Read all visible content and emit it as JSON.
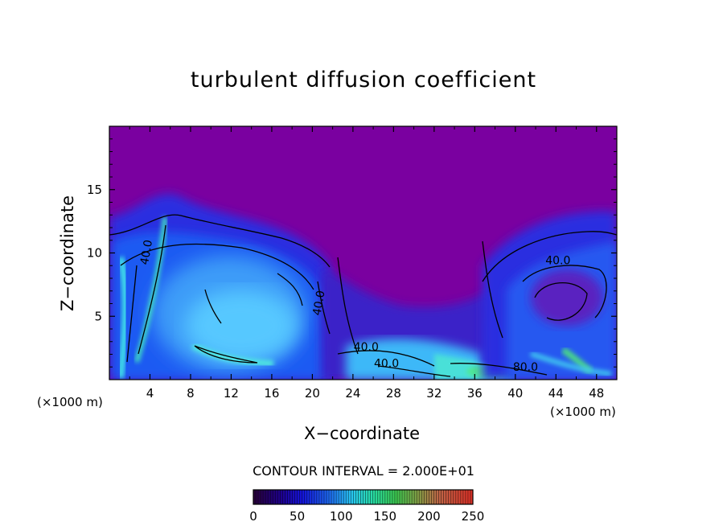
{
  "chart_data": {
    "type": "heatmap",
    "title": "turbulent diffusion coefficient",
    "xlabel": "X−coordinate",
    "ylabel": "Z−coordinate",
    "x_unit": "(×1000 m)",
    "z_unit": "(×1000 m)",
    "xlim": [
      0,
      50
    ],
    "ylim": [
      0,
      20
    ],
    "x_ticks": [
      4,
      8,
      12,
      16,
      20,
      24,
      28,
      32,
      36,
      40,
      44,
      48
    ],
    "y_ticks": [
      5,
      10,
      15
    ],
    "contour_interval_label": "CONTOUR INTERVAL = 2.000E+01",
    "contour_labels": [
      {
        "text": "40.0",
        "x": 4.0,
        "z": 10.0,
        "rotate": true
      },
      {
        "text": "40.0",
        "x": 44.2,
        "z": 9.1,
        "rotate": false
      },
      {
        "text": "40.0",
        "x": 25.3,
        "z": 2.3,
        "rotate": false
      },
      {
        "text": "40.0",
        "x": 27.3,
        "z": 1.0,
        "rotate": false
      },
      {
        "text": "80.0",
        "x": 41.0,
        "z": 0.7,
        "rotate": false
      },
      {
        "text": "40.0",
        "x": 21.0,
        "z": 6.0,
        "rotate": true
      }
    ],
    "colorbar": {
      "min": 0,
      "max": 250,
      "tick_labels": [
        "0",
        "50",
        "100",
        "150",
        "200",
        "250"
      ],
      "tick_values": [
        0,
        50,
        100,
        150,
        200,
        250
      ]
    },
    "colors": {
      "background_low": "#7a00a0",
      "mid_blue": "#1a3cf0",
      "light_blue": "#4ab4ff",
      "cyan": "#40e0e8",
      "green": "#40d890"
    }
  }
}
